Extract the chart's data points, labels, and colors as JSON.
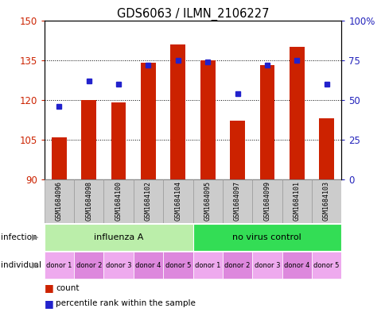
{
  "title": "GDS6063 / ILMN_2106227",
  "samples": [
    "GSM1684096",
    "GSM1684098",
    "GSM1684100",
    "GSM1684102",
    "GSM1684104",
    "GSM1684095",
    "GSM1684097",
    "GSM1684099",
    "GSM1684101",
    "GSM1684103"
  ],
  "bar_values": [
    106,
    120,
    119,
    134,
    141,
    135,
    112,
    133,
    140,
    113
  ],
  "percentile_values": [
    46,
    62,
    60,
    72,
    75,
    74,
    54,
    72,
    75,
    60
  ],
  "ylim_left": [
    90,
    150
  ],
  "ylim_right": [
    0,
    100
  ],
  "yticks_left": [
    90,
    105,
    120,
    135,
    150
  ],
  "yticks_right": [
    0,
    25,
    50,
    75,
    100
  ],
  "ytick_right_labels": [
    "0",
    "25",
    "50",
    "75",
    "100%"
  ],
  "bar_color": "#cc2200",
  "dot_color": "#2222cc",
  "bar_width": 0.5,
  "infection_groups": [
    {
      "label": "influenza A",
      "span": [
        0,
        5
      ],
      "color": "#bbeeaa"
    },
    {
      "label": "no virus control",
      "span": [
        5,
        10
      ],
      "color": "#33dd55"
    }
  ],
  "individual_labels": [
    "donor 1",
    "donor 2",
    "donor 3",
    "donor 4",
    "donor 5",
    "donor 1",
    "donor 2",
    "donor 3",
    "donor 4",
    "donor 5"
  ],
  "individual_colors_alt": [
    "#eeaaee",
    "#dd88dd",
    "#eeaaee",
    "#dd88dd",
    "#dd88dd",
    "#eeaaee",
    "#dd88dd",
    "#eeaaee",
    "#dd88dd",
    "#eeaaee"
  ],
  "sample_box_color": "#cccccc",
  "sample_box_edge": "#999999",
  "legend_count_color": "#cc2200",
  "legend_dot_color": "#2222cc",
  "grid_color": "black",
  "left_label_color": "#cc2200",
  "right_label_color": "#2222bb"
}
